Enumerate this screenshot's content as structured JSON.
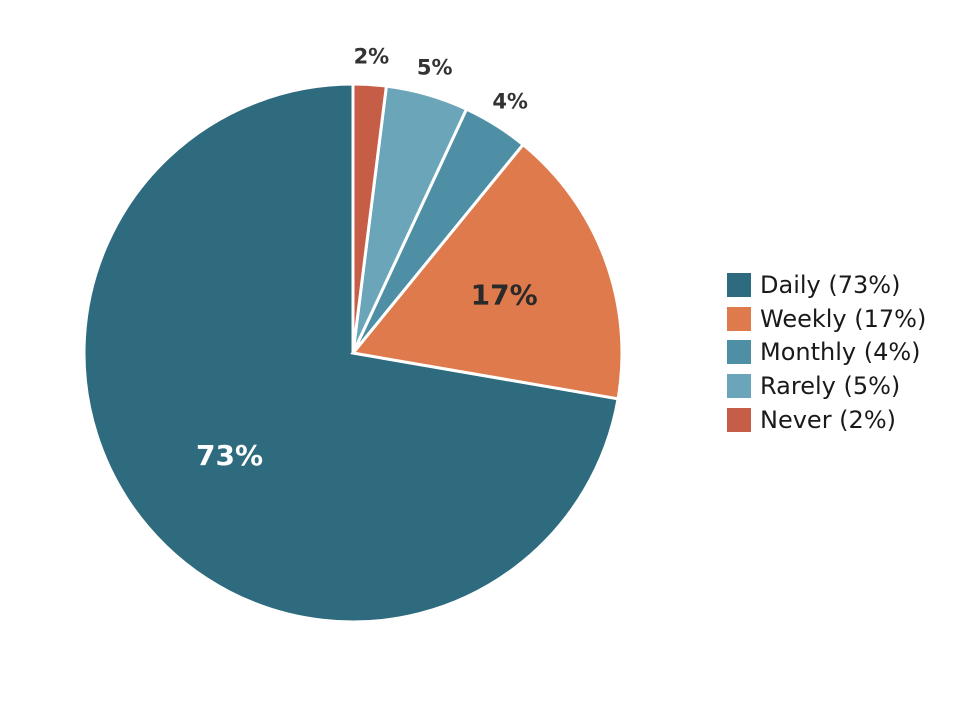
{
  "chart_data": {
    "type": "pie",
    "title": "",
    "start_angle_deg": 90,
    "direction": "counterclockwise",
    "legend_position": "right",
    "slices": [
      {
        "label": "Daily",
        "value": 73,
        "display": "73%",
        "legend": "Daily (73%)",
        "color": "#2f6b7e",
        "label_color": "#ffffff",
        "label_placement": "inside"
      },
      {
        "label": "Weekly",
        "value": 17,
        "display": "17%",
        "legend": "Weekly (17%)",
        "color": "#df7a4c",
        "label_color": "#2a2a2a",
        "label_placement": "inside"
      },
      {
        "label": "Monthly",
        "value": 4,
        "display": "4%",
        "legend": "Monthly (4%)",
        "color": "#4e8fa6",
        "label_color": "#333333",
        "label_placement": "outside"
      },
      {
        "label": "Rarely",
        "value": 5,
        "display": "5%",
        "legend": "Rarely (5%)",
        "color": "#6ba5b9",
        "label_color": "#333333",
        "label_placement": "outside"
      },
      {
        "label": "Never",
        "value": 2,
        "display": "2%",
        "legend": "Never (2%)",
        "color": "#c65e47",
        "label_color": "#333333",
        "label_placement": "outside"
      }
    ]
  }
}
